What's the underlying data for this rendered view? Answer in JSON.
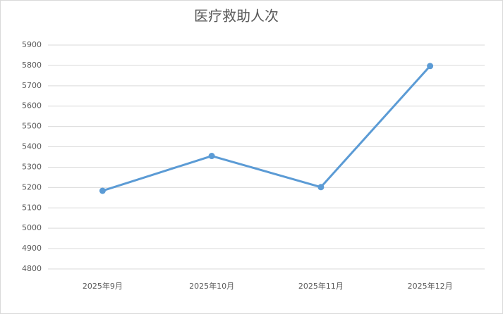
{
  "chart_data": {
    "type": "line",
    "title": "医疗救助人次",
    "categories": [
      "2025年9月",
      "2025年10月",
      "2025年11月",
      "2025年12月"
    ],
    "values": [
      5184,
      5355,
      5202,
      5797
    ],
    "color": "#5b9bd5",
    "ylim": [
      4800,
      5900
    ],
    "yticks": [
      4800,
      4900,
      5000,
      5100,
      5200,
      5300,
      5400,
      5500,
      5600,
      5700,
      5800,
      5900
    ],
    "grid": true
  }
}
